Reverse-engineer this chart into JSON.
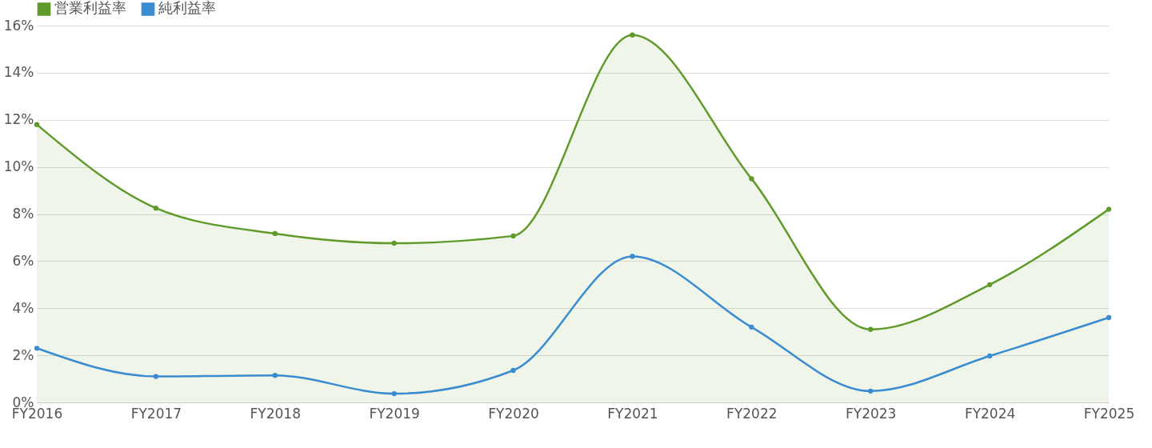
{
  "chart_data": {
    "type": "line",
    "categories": [
      "FY2016",
      "FY2017",
      "FY2018",
      "FY2019",
      "FY2020",
      "FY2021",
      "FY2022",
      "FY2023",
      "FY2024",
      "FY2025"
    ],
    "series": [
      {
        "name": "営業利益率",
        "type": "area",
        "color": "#5f9a2a",
        "values": [
          11.8,
          8.25,
          7.17,
          6.76,
          7.07,
          15.6,
          9.5,
          3.1,
          5.0,
          8.2
        ]
      },
      {
        "name": "純利益率",
        "color": "#3a8bcf",
        "values": [
          2.3,
          1.1,
          1.15,
          0.37,
          1.36,
          6.2,
          3.2,
          0.48,
          1.97,
          3.6
        ]
      }
    ],
    "ylim": [
      0,
      16
    ],
    "yticks": [
      {
        "value": 0,
        "label": "0%"
      },
      {
        "value": 2,
        "label": "2%"
      },
      {
        "value": 4,
        "label": "4%"
      },
      {
        "value": 6,
        "label": "6%"
      },
      {
        "value": 8,
        "label": "8%"
      },
      {
        "value": 10,
        "label": "10%"
      },
      {
        "value": 12,
        "label": "12%"
      },
      {
        "value": 14,
        "label": "14%"
      },
      {
        "value": 16,
        "label": "16%"
      }
    ],
    "grid": "y",
    "legend": "top left",
    "marker": "circle",
    "line_style": "solid"
  }
}
